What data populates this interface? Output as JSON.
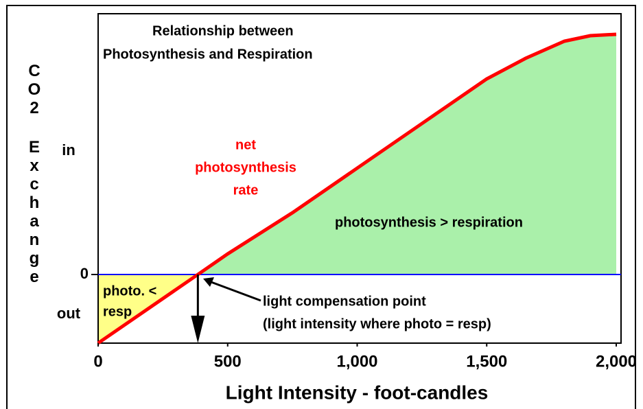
{
  "chart_data": {
    "type": "line",
    "title_lines": [
      "Relationship between",
      "Photosynthesis and Respiration"
    ],
    "ylabel": "CO2 Exchange",
    "xlabel": "Light Intensity - foot-candles",
    "y_region_labels": {
      "upper": "in",
      "lower": "out"
    },
    "x": [
      0,
      385,
      500,
      750,
      1000,
      1250,
      1500,
      1650,
      1800,
      1900,
      2000
    ],
    "series": [
      {
        "name": "net photosynthesis rate",
        "color": "#ff0000",
        "values": [
          -1,
          0,
          0.3,
          0.9,
          1.55,
          2.2,
          2.85,
          3.15,
          3.4,
          3.48,
          3.5
        ]
      }
    ],
    "xlim": [
      0,
      2000
    ],
    "ylim": [
      -1,
      3.8
    ],
    "xticks": [
      0,
      500,
      {
        "value": 1000,
        "label": "1,000"
      },
      {
        "value": 1500,
        "label": "1,500"
      },
      {
        "value": 2000,
        "label": "2,000"
      }
    ],
    "yticks": [
      0
    ],
    "zero_line_color": "#0000ff",
    "above_fill_color": "#aaf0aa",
    "below_fill_color": "#ffff88",
    "compensation_x": 385,
    "annotations": {
      "curve_label": [
        "net",
        "photosynthesis",
        "rate"
      ],
      "above_label": "photosynthesis > respiration",
      "below_label": [
        "photo. <",
        "resp"
      ],
      "point_label": [
        "light compensation point",
        "(light intensity where photo = resp)"
      ]
    }
  }
}
